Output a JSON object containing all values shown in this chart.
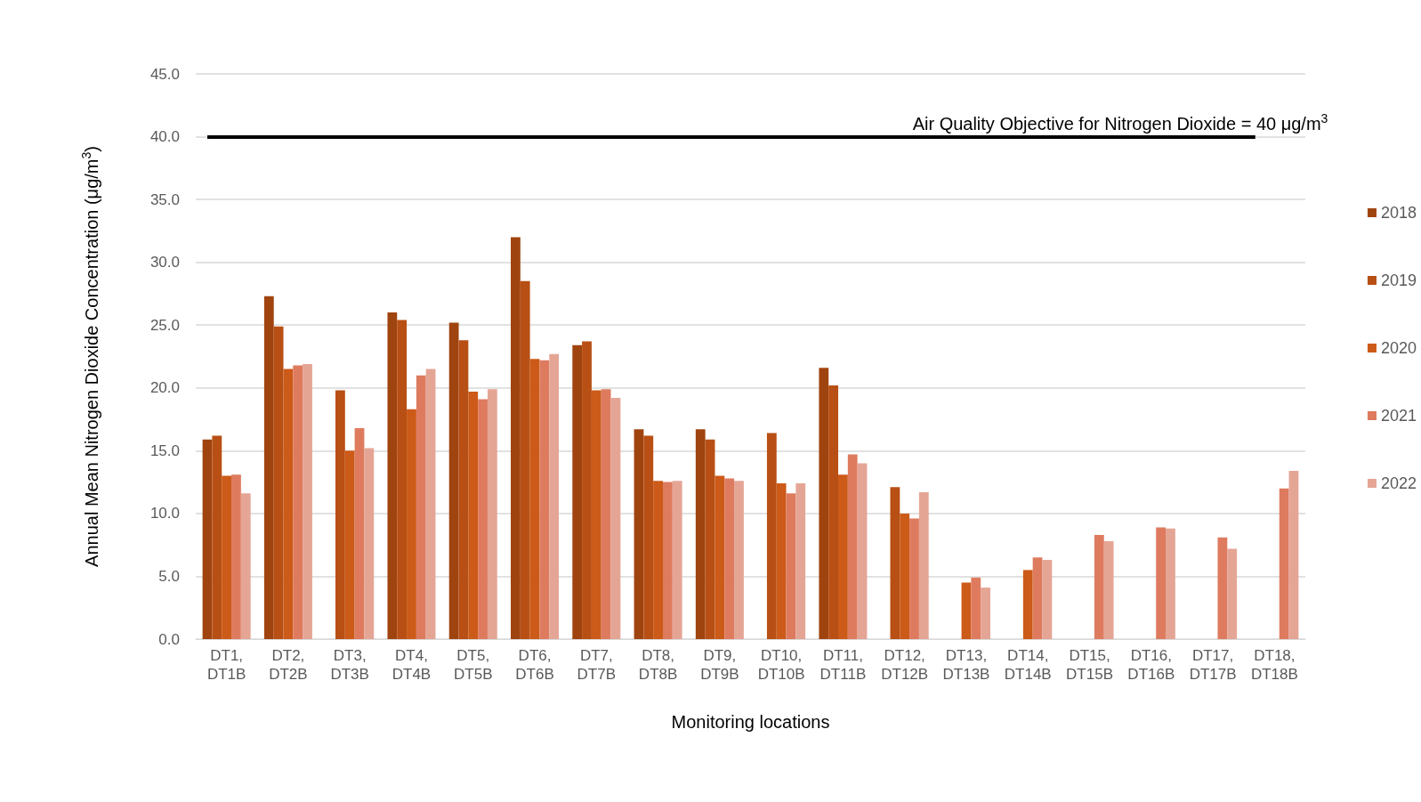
{
  "chart_data": {
    "type": "bar",
    "xlabel": "Monitoring locations",
    "ylabel": "Annual Mean Nitrogen Dioxide Concentration (μg/m$^{3}$)",
    "categories": [
      "DT1, DT1B",
      "DT2, DT2B",
      "DT3, DT3B",
      "DT4, DT4B",
      "DT5, DT5B",
      "DT6, DT6B",
      "DT7, DT7B",
      "DT8, DT8B",
      "DT9, DT9B",
      "DT10, DT10B",
      "DT11, DT11B",
      "DT12, DT12B",
      "DT13, DT13B",
      "DT14, DT14B",
      "DT15, DT15B",
      "DT16, DT16B",
      "DT17, DT17B",
      "DT18, DT18B"
    ],
    "series": [
      {
        "name": "2018",
        "color": "#a0440f",
        "values": [
          15.9,
          27.3,
          null,
          26.0,
          25.2,
          32.0,
          23.4,
          16.7,
          16.7,
          null,
          21.6,
          null,
          null,
          null,
          null,
          null,
          null,
          null
        ]
      },
      {
        "name": "2019",
        "color": "#b84f14",
        "values": [
          16.2,
          24.9,
          19.8,
          25.4,
          23.8,
          28.5,
          23.7,
          16.2,
          15.9,
          16.4,
          20.2,
          12.1,
          null,
          null,
          null,
          null,
          null,
          null
        ]
      },
      {
        "name": "2020",
        "color": "#cc5a18",
        "values": [
          13.0,
          21.5,
          15.0,
          18.3,
          19.7,
          22.3,
          19.8,
          12.6,
          13.0,
          12.4,
          13.1,
          10.0,
          4.5,
          5.5,
          null,
          null,
          null,
          null
        ]
      },
      {
        "name": "2021",
        "color": "#de7b5f",
        "values": [
          13.1,
          21.8,
          16.8,
          21.0,
          19.1,
          22.2,
          19.9,
          12.5,
          12.8,
          11.6,
          14.7,
          9.6,
          4.9,
          6.5,
          8.3,
          8.9,
          8.1,
          12.0
        ]
      },
      {
        "name": "2022",
        "color": "#e5a595",
        "values": [
          11.6,
          21.9,
          15.2,
          21.5,
          19.9,
          22.7,
          19.2,
          12.6,
          12.6,
          12.4,
          14.0,
          11.7,
          4.1,
          6.3,
          7.8,
          8.8,
          7.2,
          13.4
        ]
      }
    ],
    "ylim": [
      0,
      45
    ],
    "yticks": [
      {
        "value": 0,
        "label": "0.0"
      },
      {
        "value": 5,
        "label": "5.0"
      },
      {
        "value": 10,
        "label": "10.0"
      },
      {
        "value": 15,
        "label": "15.0"
      },
      {
        "value": 20,
        "label": "20.0"
      },
      {
        "value": 25,
        "label": "25.0"
      },
      {
        "value": 30,
        "label": "30.0"
      },
      {
        "value": 35,
        "label": "35.0"
      },
      {
        "value": 40,
        "label": "40.0"
      },
      {
        "value": 45,
        "label": "45.0"
      }
    ],
    "ref_lines": [
      {
        "axis": "y",
        "value": 40,
        "label": "Air Quality Objective for Nitrogen Dioxide = 40 μg/m$^{3}$",
        "color": "#000000",
        "line_style": "solid"
      }
    ],
    "grid": "y",
    "legend": "right"
  }
}
